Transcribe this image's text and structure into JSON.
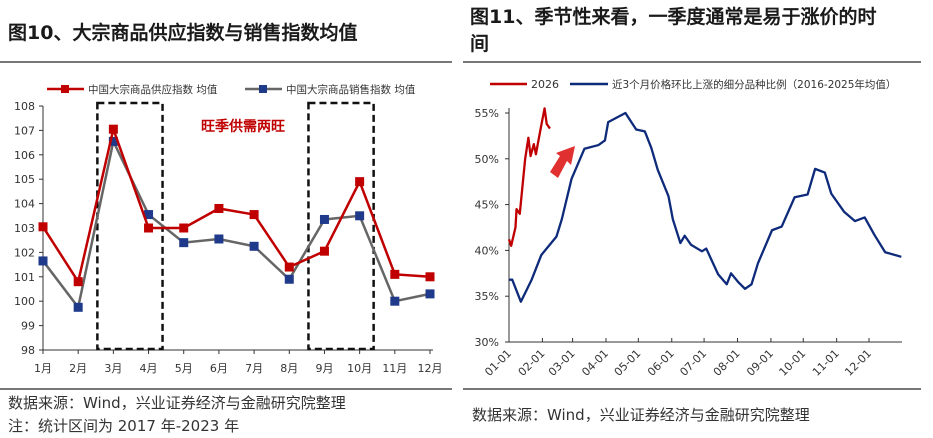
{
  "left": {
    "title": "图10、大宗商品供应指数与销售指数均值",
    "source": "数据来源：Wind，兴业证券经济与金融研究院整理",
    "note": "注：统计区间为 2017 年-2023 年"
  },
  "right": {
    "title_line1": "图11、季节性来看，一季度通常是易于涨价的时",
    "title_line2": "间",
    "source": "数据来源：Wind，兴业证券经济与金融研究院整理"
  },
  "chart_data": [
    {
      "type": "line",
      "categories": [
        "1月",
        "2月",
        "3月",
        "4月",
        "5月",
        "6月",
        "7月",
        "8月",
        "9月",
        "10月",
        "11月",
        "12月"
      ],
      "ylim": [
        98,
        108
      ],
      "yticks": [
        "98",
        "99",
        "100",
        "101",
        "102",
        "103",
        "104",
        "105",
        "106",
        "107",
        "108"
      ],
      "legend_position": "top",
      "annotation": "旺季供需两旺",
      "annotation_color": "#c00000",
      "highlight_boxes": [
        [
          "3月",
          "4月"
        ],
        [
          "9月",
          "10月"
        ]
      ],
      "series": [
        {
          "name": "中国大宗商品供应指数 均值",
          "color": "#c00000",
          "marker_color": "#c00000",
          "values": [
            103.05,
            100.8,
            107.05,
            103.0,
            103.0,
            103.8,
            103.55,
            101.4,
            102.05,
            104.9,
            101.1,
            101.0
          ]
        },
        {
          "name": "中国大宗商品销售指数 均值",
          "color": "#666666",
          "marker_color": "#1f3a8a",
          "values": [
            101.65,
            99.75,
            106.55,
            103.55,
            102.4,
            102.55,
            102.25,
            100.9,
            103.35,
            103.5,
            100.0,
            100.3
          ]
        }
      ]
    },
    {
      "type": "line",
      "xticks": [
        "01-01",
        "02-01",
        "03-01",
        "04-01",
        "05-01",
        "06-01",
        "07-01",
        "08-01",
        "09-01",
        "10-01",
        "11-01",
        "12-01"
      ],
      "ylim": [
        30,
        55
      ],
      "yticks": [
        "30%",
        "35%",
        "40%",
        "45%",
        "50%",
        "55%"
      ],
      "legend_position": "top",
      "annotation": "up-arrow",
      "series": [
        {
          "name": "2026",
          "color": "#c00000",
          "points": [
            [
              "01-01",
              41.2
            ],
            [
              "01-03",
              40.5
            ],
            [
              "01-07",
              42.5
            ],
            [
              "01-08",
              44.5
            ],
            [
              "01-11",
              44.0
            ],
            [
              "01-16",
              50.0
            ],
            [
              "01-19",
              52.3
            ],
            [
              "01-21",
              50.3
            ],
            [
              "01-24",
              51.6
            ],
            [
              "01-26",
              50.5
            ],
            [
              "01-28",
              51.8
            ],
            [
              "02-01",
              54.3
            ],
            [
              "02-03",
              55.5
            ],
            [
              "02-05",
              53.8
            ],
            [
              "02-08",
              53.3
            ]
          ]
        },
        {
          "name": "近3个月价格环比上涨的细分品种比例（2016-2025年均值）",
          "color": "#0e2a7a",
          "points": [
            [
              "01-01",
              36.8
            ],
            [
              "01-04",
              36.8
            ],
            [
              "01-12",
              34.4
            ],
            [
              "01-22",
              36.8
            ],
            [
              "01-31",
              39.5
            ],
            [
              "02-14",
              41.5
            ],
            [
              "02-19",
              43.4
            ],
            [
              "02-28",
              47.8
            ],
            [
              "03-12",
              51.1
            ],
            [
              "03-25",
              51.5
            ],
            [
              "03-31",
              52.0
            ],
            [
              "04-03",
              54.0
            ],
            [
              "04-19",
              55.0
            ],
            [
              "04-29",
              53.2
            ],
            [
              "05-07",
              53.0
            ],
            [
              "05-13",
              51.2
            ],
            [
              "05-19",
              48.8
            ],
            [
              "05-29",
              45.9
            ],
            [
              "06-02",
              43.4
            ],
            [
              "06-09",
              40.8
            ],
            [
              "06-13",
              41.6
            ],
            [
              "06-19",
              40.6
            ],
            [
              "06-29",
              39.9
            ],
            [
              "07-03",
              40.2
            ],
            [
              "07-14",
              37.4
            ],
            [
              "07-22",
              36.3
            ],
            [
              "07-26",
              37.5
            ],
            [
              "08-02",
              36.5
            ],
            [
              "08-08",
              35.8
            ],
            [
              "08-14",
              36.3
            ],
            [
              "08-20",
              38.6
            ],
            [
              "09-02",
              42.2
            ],
            [
              "09-11",
              42.6
            ],
            [
              "09-23",
              45.8
            ],
            [
              "10-05",
              46.1
            ],
            [
              "10-12",
              48.9
            ],
            [
              "10-21",
              48.5
            ],
            [
              "10-27",
              46.2
            ],
            [
              "11-08",
              44.2
            ],
            [
              "11-18",
              43.2
            ],
            [
              "11-27",
              43.6
            ],
            [
              "12-06",
              41.7
            ],
            [
              "12-16",
              39.8
            ],
            [
              "12-31",
              39.3
            ]
          ]
        }
      ]
    }
  ]
}
